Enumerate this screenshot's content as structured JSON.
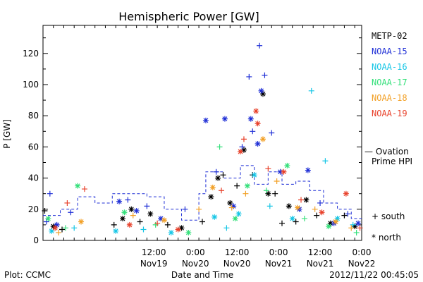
{
  "chart_data": {
    "type": "scatter",
    "title": "Hemispheric Power [GW]",
    "ylabel": "P [GW]",
    "xlabel": "Date and Time",
    "ylim": [
      0,
      138
    ],
    "xlim": [
      "2012-11-18 04:00",
      "2012-11-22 00:00"
    ],
    "yticks": [
      0,
      20,
      40,
      60,
      80,
      100,
      120
    ],
    "xticks": [
      {
        "time": "2012-11-19 12:00",
        "hour": "12:00",
        "date": "Nov19"
      },
      {
        "time": "2012-11-20 00:00",
        "hour": "0:00",
        "date": "Nov20"
      },
      {
        "time": "2012-11-20 12:00",
        "hour": "12:00",
        "date": "Nov20"
      },
      {
        "time": "2012-11-21 00:00",
        "hour": "0:00",
        "date": "Nov21"
      },
      {
        "time": "2012-11-21 12:00",
        "hour": "12:00",
        "date": "Nov21"
      },
      {
        "time": "2012-11-22 00:00",
        "hour": "0:00",
        "date": "Nov22"
      }
    ],
    "legend": {
      "placement": "right",
      "satellites": [
        {
          "name": "METP-02",
          "color": "#000000"
        },
        {
          "name": "NOAA-15",
          "color": "#1f2fd6"
        },
        {
          "name": "NOAA-16",
          "color": "#16c6e6"
        },
        {
          "name": "NOAA-17",
          "color": "#34e07a"
        },
        {
          "name": "NOAA-18",
          "color": "#f2a026"
        },
        {
          "name": "NOAA-19",
          "color": "#e8402a"
        }
      ],
      "model": {
        "line1": "— Ovation",
        "line2": "Prime HPI",
        "color": "#1f2fd6"
      },
      "markers": [
        {
          "symbol": "+",
          "label": "south"
        },
        {
          "symbol": "*",
          "label": "north"
        }
      ]
    },
    "series": [
      {
        "name": "METP-02",
        "color": "#000000",
        "points": [
          {
            "t": "2012-11-18 04:30",
            "v": 19,
            "m": "+"
          },
          {
            "t": "2012-11-18 07:00",
            "v": 9,
            "m": "*"
          },
          {
            "t": "2012-11-18 09:30",
            "v": 7,
            "m": "+"
          },
          {
            "t": "2012-11-19 00:30",
            "v": 10,
            "m": "+"
          },
          {
            "t": "2012-11-19 03:00",
            "v": 14,
            "m": "*"
          },
          {
            "t": "2012-11-19 05:30",
            "v": 20,
            "m": "*"
          },
          {
            "t": "2012-11-19 08:00",
            "v": 12,
            "m": "+"
          },
          {
            "t": "2012-11-19 11:00",
            "v": 17,
            "m": "*"
          },
          {
            "t": "2012-11-19 16:00",
            "v": 10,
            "m": "+"
          },
          {
            "t": "2012-11-19 20:00",
            "v": 8,
            "m": "*"
          },
          {
            "t": "2012-11-20 02:00",
            "v": 12,
            "m": "+"
          },
          {
            "t": "2012-11-20 04:30",
            "v": 28,
            "m": "*"
          },
          {
            "t": "2012-11-20 06:30",
            "v": 40,
            "m": "*"
          },
          {
            "t": "2012-11-20 08:00",
            "v": 42,
            "m": "+"
          },
          {
            "t": "2012-11-20 10:00",
            "v": 24,
            "m": "*"
          },
          {
            "t": "2012-11-20 12:00",
            "v": 35,
            "m": "+"
          },
          {
            "t": "2012-11-20 14:00",
            "v": 58,
            "m": "*"
          },
          {
            "t": "2012-11-20 16:30",
            "v": 42,
            "m": "+"
          },
          {
            "t": "2012-11-20 19:30",
            "v": 94,
            "m": "*"
          },
          {
            "t": "2012-11-20 21:00",
            "v": 30,
            "m": "*"
          },
          {
            "t": "2012-11-20 23:00",
            "v": 30,
            "m": "+"
          },
          {
            "t": "2012-11-21 01:00",
            "v": 11,
            "m": "+"
          },
          {
            "t": "2012-11-21 03:00",
            "v": 22,
            "m": "*"
          },
          {
            "t": "2012-11-21 05:00",
            "v": 12,
            "m": "+"
          },
          {
            "t": "2012-11-21 08:00",
            "v": 26,
            "m": "*"
          },
          {
            "t": "2012-11-21 11:00",
            "v": 16,
            "m": "+"
          },
          {
            "t": "2012-11-21 15:00",
            "v": 11,
            "m": "*"
          },
          {
            "t": "2012-11-21 19:00",
            "v": 16,
            "m": "+"
          },
          {
            "t": "2012-11-21 22:00",
            "v": 9,
            "m": "*"
          }
        ]
      },
      {
        "name": "NOAA-15",
        "color": "#1f2fd6",
        "points": [
          {
            "t": "2012-11-18 05:00",
            "v": 12,
            "m": "+"
          },
          {
            "t": "2012-11-18 06:00",
            "v": 30,
            "m": "+"
          },
          {
            "t": "2012-11-18 08:00",
            "v": 10,
            "m": "*"
          },
          {
            "t": "2012-11-18 12:00",
            "v": 18,
            "m": "+"
          },
          {
            "t": "2012-11-19 02:00",
            "v": 25,
            "m": "*"
          },
          {
            "t": "2012-11-19 04:30",
            "v": 26,
            "m": "+"
          },
          {
            "t": "2012-11-19 07:00",
            "v": 19,
            "m": "*"
          },
          {
            "t": "2012-11-19 10:00",
            "v": 22,
            "m": "+"
          },
          {
            "t": "2012-11-19 14:00",
            "v": 14,
            "m": "*"
          },
          {
            "t": "2012-11-19 21:00",
            "v": 20,
            "m": "+"
          },
          {
            "t": "2012-11-20 03:00",
            "v": 77,
            "m": "*"
          },
          {
            "t": "2012-11-20 06:00",
            "v": 44,
            "m": "+"
          },
          {
            "t": "2012-11-20 08:30",
            "v": 78,
            "m": "*"
          },
          {
            "t": "2012-11-20 11:00",
            "v": 22,
            "m": "*"
          },
          {
            "t": "2012-11-20 13:30",
            "v": 60,
            "m": "+"
          },
          {
            "t": "2012-11-20 15:30",
            "v": 105,
            "m": "+"
          },
          {
            "t": "2012-11-20 16:00",
            "v": 78,
            "m": "*"
          },
          {
            "t": "2012-11-20 16:30",
            "v": 70,
            "m": "+"
          },
          {
            "t": "2012-11-20 18:00",
            "v": 62,
            "m": "*"
          },
          {
            "t": "2012-11-20 18:30",
            "v": 125,
            "m": "+"
          },
          {
            "t": "2012-11-20 19:00",
            "v": 96,
            "m": "*"
          },
          {
            "t": "2012-11-20 20:00",
            "v": 106,
            "m": "+"
          },
          {
            "t": "2012-11-20 22:00",
            "v": 69,
            "m": "+"
          },
          {
            "t": "2012-11-21 00:30",
            "v": 44,
            "m": "*"
          },
          {
            "t": "2012-11-21 06:00",
            "v": 20,
            "m": "*"
          },
          {
            "t": "2012-11-21 08:30",
            "v": 45,
            "m": "*"
          },
          {
            "t": "2012-11-21 12:00",
            "v": 24,
            "m": "+"
          },
          {
            "t": "2012-11-21 16:00",
            "v": 11,
            "m": "*"
          },
          {
            "t": "2012-11-21 20:00",
            "v": 17,
            "m": "+"
          },
          {
            "t": "2012-11-21 23:00",
            "v": 11,
            "m": "*"
          }
        ]
      },
      {
        "name": "NOAA-16",
        "color": "#16c6e6",
        "points": [
          {
            "t": "2012-11-18 06:30",
            "v": 6,
            "m": "*"
          },
          {
            "t": "2012-11-18 13:00",
            "v": 8,
            "m": "+"
          },
          {
            "t": "2012-11-19 01:00",
            "v": 6,
            "m": "*"
          },
          {
            "t": "2012-11-19 09:00",
            "v": 7,
            "m": "+"
          },
          {
            "t": "2012-11-19 17:00",
            "v": 5,
            "m": "*"
          },
          {
            "t": "2012-11-20 05:30",
            "v": 15,
            "m": "*"
          },
          {
            "t": "2012-11-20 09:00",
            "v": 8,
            "m": "+"
          },
          {
            "t": "2012-11-20 12:30",
            "v": 17,
            "m": "*"
          },
          {
            "t": "2012-11-20 17:00",
            "v": 42,
            "m": "*"
          },
          {
            "t": "2012-11-20 21:30",
            "v": 22,
            "m": "+"
          },
          {
            "t": "2012-11-21 04:00",
            "v": 14,
            "m": "*"
          },
          {
            "t": "2012-11-21 09:30",
            "v": 96,
            "m": "+"
          },
          {
            "t": "2012-11-21 13:30",
            "v": 51,
            "m": "+"
          },
          {
            "t": "2012-11-21 17:00",
            "v": 14,
            "m": "*"
          },
          {
            "t": "2012-11-21 21:30",
            "v": 10,
            "m": "+"
          }
        ]
      },
      {
        "name": "NOAA-17",
        "color": "#34e07a",
        "points": [
          {
            "t": "2012-11-18 05:30",
            "v": 14,
            "m": "*"
          },
          {
            "t": "2012-11-18 10:30",
            "v": 8,
            "m": "+"
          },
          {
            "t": "2012-11-18 14:00",
            "v": 35,
            "m": "*"
          },
          {
            "t": "2012-11-19 03:30",
            "v": 18,
            "m": "*"
          },
          {
            "t": "2012-11-19 12:30",
            "v": 10,
            "m": "+"
          },
          {
            "t": "2012-11-19 22:00",
            "v": 5,
            "m": "*"
          },
          {
            "t": "2012-11-20 07:00",
            "v": 60,
            "m": "+"
          },
          {
            "t": "2012-11-20 11:30",
            "v": 14,
            "m": "*"
          },
          {
            "t": "2012-11-20 15:00",
            "v": 35,
            "m": "*"
          },
          {
            "t": "2012-11-20 20:30",
            "v": 32,
            "m": "+"
          },
          {
            "t": "2012-11-21 02:30",
            "v": 48,
            "m": "*"
          },
          {
            "t": "2012-11-21 07:30",
            "v": 14,
            "m": "+"
          },
          {
            "t": "2012-11-21 14:30",
            "v": 9,
            "m": "*"
          },
          {
            "t": "2012-11-21 22:30",
            "v": 5,
            "m": "+"
          }
        ]
      },
      {
        "name": "NOAA-18",
        "color": "#f2a026",
        "points": [
          {
            "t": "2012-11-18 08:30",
            "v": 5,
            "m": "+"
          },
          {
            "t": "2012-11-18 15:00",
            "v": 12,
            "m": "*"
          },
          {
            "t": "2012-11-19 06:00",
            "v": 16,
            "m": "+"
          },
          {
            "t": "2012-11-19 15:00",
            "v": 13,
            "m": "*"
          },
          {
            "t": "2012-11-20 01:00",
            "v": 20,
            "m": "+"
          },
          {
            "t": "2012-11-20 05:00",
            "v": 34,
            "m": "*"
          },
          {
            "t": "2012-11-20 10:30",
            "v": 21,
            "m": "+"
          },
          {
            "t": "2012-11-20 14:30",
            "v": 30,
            "m": "+"
          },
          {
            "t": "2012-11-20 19:30",
            "v": 65,
            "m": "*"
          },
          {
            "t": "2012-11-20 23:30",
            "v": 38,
            "m": "+"
          },
          {
            "t": "2012-11-21 05:30",
            "v": 21,
            "m": "*"
          },
          {
            "t": "2012-11-21 10:30",
            "v": 20,
            "m": "+"
          },
          {
            "t": "2012-11-21 16:30",
            "v": 12,
            "m": "*"
          },
          {
            "t": "2012-11-21 21:00",
            "v": 8,
            "m": "+"
          }
        ]
      },
      {
        "name": "NOAA-19",
        "color": "#e8402a",
        "points": [
          {
            "t": "2012-11-18 07:30",
            "v": 8,
            "m": "*"
          },
          {
            "t": "2012-11-18 11:00",
            "v": 24,
            "m": "+"
          },
          {
            "t": "2012-11-18 16:00",
            "v": 33,
            "m": "+"
          },
          {
            "t": "2012-11-19 05:00",
            "v": 10,
            "m": "*"
          },
          {
            "t": "2012-11-19 13:00",
            "v": 11,
            "m": "+"
          },
          {
            "t": "2012-11-19 19:00",
            "v": 7,
            "m": "*"
          },
          {
            "t": "2012-11-20 07:30",
            "v": 32,
            "m": "+"
          },
          {
            "t": "2012-11-20 13:00",
            "v": 57,
            "m": "*"
          },
          {
            "t": "2012-11-20 14:00",
            "v": 65,
            "m": "+"
          },
          {
            "t": "2012-11-20 17:30",
            "v": 83,
            "m": "*"
          },
          {
            "t": "2012-11-20 18:00",
            "v": 75,
            "m": "*"
          },
          {
            "t": "2012-11-20 21:00",
            "v": 46,
            "m": "+"
          },
          {
            "t": "2012-11-21 01:30",
            "v": 44,
            "m": "*"
          },
          {
            "t": "2012-11-21 06:30",
            "v": 26,
            "m": "+"
          },
          {
            "t": "2012-11-21 12:30",
            "v": 18,
            "m": "*"
          },
          {
            "t": "2012-11-21 19:30",
            "v": 30,
            "m": "*"
          },
          {
            "t": "2012-11-21 23:30",
            "v": 8,
            "m": "+"
          }
        ]
      },
      {
        "name": "Ovation Prime HPI",
        "color": "#1f2fd6",
        "type": "line",
        "style": "dashed",
        "points": [
          {
            "t": "2012-11-18 04:00",
            "v": 16
          },
          {
            "t": "2012-11-18 09:00",
            "v": 20
          },
          {
            "t": "2012-11-18 14:00",
            "v": 28
          },
          {
            "t": "2012-11-18 19:00",
            "v": 24
          },
          {
            "t": "2012-11-19 00:00",
            "v": 30
          },
          {
            "t": "2012-11-19 05:00",
            "v": 30
          },
          {
            "t": "2012-11-19 10:00",
            "v": 28
          },
          {
            "t": "2012-11-19 15:00",
            "v": 20
          },
          {
            "t": "2012-11-19 20:00",
            "v": 13
          },
          {
            "t": "2012-11-20 01:00",
            "v": 30
          },
          {
            "t": "2012-11-20 03:00",
            "v": 44
          },
          {
            "t": "2012-11-20 08:00",
            "v": 40
          },
          {
            "t": "2012-11-20 13:00",
            "v": 48
          },
          {
            "t": "2012-11-20 17:00",
            "v": 36
          },
          {
            "t": "2012-11-20 21:00",
            "v": 44
          },
          {
            "t": "2012-11-21 01:00",
            "v": 36
          },
          {
            "t": "2012-11-21 05:00",
            "v": 38
          },
          {
            "t": "2012-11-21 09:00",
            "v": 32
          },
          {
            "t": "2012-11-21 13:00",
            "v": 24
          },
          {
            "t": "2012-11-21 17:00",
            "v": 20
          },
          {
            "t": "2012-11-21 21:00",
            "v": 14
          },
          {
            "t": "2012-11-22 00:00",
            "v": 14
          }
        ]
      }
    ]
  },
  "footer": {
    "plot": "Plot: CCMC",
    "timestamp": "2012/11/22 00:45:05"
  }
}
